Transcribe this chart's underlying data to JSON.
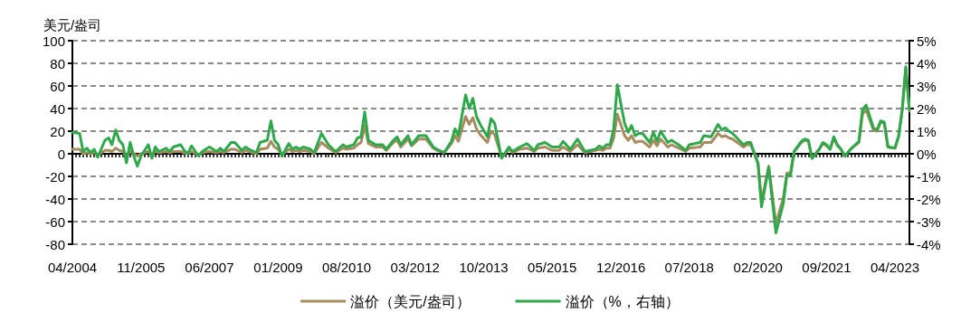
{
  "chart_data": {
    "type": "line",
    "ylabel": "美元/盎司",
    "x": [
      "2004-04",
      "2004-06",
      "2004-07",
      "2004-08",
      "2004-09",
      "2004-10",
      "2004-11",
      "2005-01",
      "2005-02",
      "2005-03",
      "2005-04",
      "2005-05",
      "2005-06",
      "2005-07",
      "2005-08",
      "2005-09",
      "2005-10",
      "2005-11",
      "2006-01",
      "2006-02",
      "2006-03",
      "2006-04",
      "2006-06",
      "2006-07",
      "2006-08",
      "2006-10",
      "2006-11",
      "2006-12",
      "2007-01",
      "2007-03",
      "2007-04",
      "2007-06",
      "2007-08",
      "2007-09",
      "2007-10",
      "2007-12",
      "2008-01",
      "2008-03",
      "2008-04",
      "2008-05",
      "2008-07",
      "2008-08",
      "2008-10",
      "2008-11",
      "2008-12",
      "2009-01",
      "2009-02",
      "2009-04",
      "2009-05",
      "2009-06",
      "2009-07",
      "2009-08",
      "2009-10",
      "2009-11",
      "2010-01",
      "2010-03",
      "2010-05",
      "2010-07",
      "2010-08",
      "2010-10",
      "2010-11",
      "2010-12",
      "2011-01",
      "2011-02",
      "2011-04",
      "2011-06",
      "2011-07",
      "2011-09",
      "2011-10",
      "2011-11",
      "2012-01",
      "2012-02",
      "2012-04",
      "2012-06",
      "2012-08",
      "2012-09",
      "2012-11",
      "2013-01",
      "2013-02",
      "2013-03",
      "2013-05",
      "2013-06",
      "2013-07",
      "2013-08",
      "2013-09",
      "2013-11",
      "2013-12",
      "2014-01",
      "2014-03",
      "2014-05",
      "2014-06",
      "2014-08",
      "2014-10",
      "2014-12",
      "2015-01",
      "2015-03",
      "2015-05",
      "2015-07",
      "2015-08",
      "2015-10",
      "2015-12",
      "2016-02",
      "2016-05",
      "2016-06",
      "2016-07",
      "2016-08",
      "2016-09",
      "2016-10",
      "2016-11",
      "2017-01",
      "2017-02",
      "2017-03",
      "2017-04",
      "2017-05",
      "2017-06",
      "2017-08",
      "2017-09",
      "2017-10",
      "2017-11",
      "2018-01",
      "2018-02",
      "2018-04",
      "2018-06",
      "2018-07",
      "2018-10",
      "2018-11",
      "2019-01",
      "2019-03",
      "2019-04",
      "2019-05",
      "2019-06",
      "2019-07",
      "2019-10",
      "2019-11",
      "2019-12",
      "2020-02",
      "2020-03",
      "2020-05",
      "2020-07",
      "2020-09",
      "2020-10",
      "2020-11",
      "2020-12",
      "2021-02",
      "2021-03",
      "2021-04",
      "2021-05",
      "2021-07",
      "2021-08",
      "2021-09",
      "2021-10",
      "2021-11",
      "2021-12",
      "2022-01",
      "2022-02",
      "2022-04",
      "2022-06",
      "2022-07",
      "2022-08",
      "2022-10",
      "2022-11",
      "2022-12",
      "2023-01",
      "2023-02",
      "2023-04",
      "2023-05",
      "2023-06",
      "2023-07",
      "2023-08"
    ],
    "series": [
      {
        "name": "溢价（美元/盎司）",
        "color": "#a68c5e",
        "values": [
          4,
          4,
          0,
          1,
          0,
          1,
          -1,
          3,
          3,
          2,
          5,
          3,
          2,
          -2,
          2,
          0,
          -2,
          0,
          2,
          -1,
          2,
          1,
          2,
          1,
          2,
          2,
          1,
          0,
          2,
          -1,
          1,
          2,
          1,
          2,
          1,
          4,
          4,
          1,
          3,
          2,
          0,
          4,
          5,
          11,
          6,
          4,
          -1,
          4,
          2,
          3,
          2,
          3,
          2,
          0,
          10,
          5,
          1,
          5,
          4,
          5,
          8,
          10,
          25,
          9,
          6,
          6,
          3,
          10,
          12,
          6,
          13,
          7,
          13,
          13,
          5,
          3,
          1,
          9,
          16,
          11,
          33,
          26,
          32,
          22,
          17,
          10,
          20,
          17,
          -3,
          4,
          1,
          4,
          5,
          2,
          5,
          6,
          3,
          3,
          6,
          2,
          8,
          1,
          3,
          4,
          3,
          5,
          5,
          14,
          35,
          16,
          12,
          16,
          10,
          11,
          11,
          6,
          12,
          7,
          13,
          6,
          8,
          5,
          2,
          5,
          6,
          10,
          10,
          18,
          15,
          16,
          14,
          13,
          6,
          8,
          8,
          -8,
          -42,
          -11,
          -62,
          -39,
          -17,
          -17,
          2,
          10,
          12,
          11,
          -4,
          4,
          9,
          7,
          4,
          14,
          7,
          4,
          -2,
          5,
          10,
          35,
          39,
          21,
          20,
          28,
          27,
          6,
          5,
          15,
          38,
          75,
          38
        ]
      },
      {
        "name": "溢价（%，右轴）",
        "color": "#2ea84a",
        "axis": "y2",
        "values": [
          0.95,
          0.9,
          0.1,
          0.25,
          0.05,
          0.2,
          -0.15,
          0.6,
          0.7,
          0.4,
          1.05,
          0.6,
          0.4,
          -0.4,
          0.5,
          -0.1,
          -0.55,
          -0.1,
          0.4,
          -0.2,
          0.3,
          0.1,
          0.25,
          0.1,
          0.3,
          0.4,
          0.15,
          0,
          0.35,
          -0.1,
          0.1,
          0.3,
          0.1,
          0.25,
          0.1,
          0.5,
          0.5,
          0.15,
          0.3,
          0.2,
          0.05,
          0.5,
          0.6,
          1.45,
          0.6,
          0.4,
          -0.1,
          0.45,
          0.2,
          0.3,
          0.2,
          0.3,
          0.2,
          0.05,
          0.9,
          0.4,
          0.1,
          0.4,
          0.3,
          0.4,
          0.7,
          0.75,
          1.85,
          0.6,
          0.4,
          0.4,
          0.2,
          0.6,
          0.75,
          0.4,
          0.8,
          0.4,
          0.8,
          0.8,
          0.3,
          0.2,
          0.05,
          0.55,
          1.1,
          0.8,
          2.6,
          2.0,
          2.45,
          1.65,
          1.3,
          0.75,
          1.55,
          1.35,
          -0.2,
          0.3,
          0.1,
          0.3,
          0.45,
          0.15,
          0.4,
          0.5,
          0.3,
          0.3,
          0.55,
          0.2,
          0.65,
          0.1,
          0.2,
          0.35,
          0.25,
          0.4,
          0.4,
          1.1,
          3.05,
          1.35,
          0.95,
          1.25,
          0.8,
          0.9,
          0.9,
          0.5,
          0.95,
          0.55,
          1.0,
          0.5,
          0.6,
          0.4,
          0.15,
          0.4,
          0.5,
          0.8,
          0.75,
          1.3,
          1.05,
          1.15,
          1.0,
          0.9,
          0.4,
          0.5,
          0.5,
          -0.45,
          -2.35,
          -0.6,
          -3.5,
          -2.2,
          -0.95,
          -0.95,
          0.1,
          0.55,
          0.65,
          0.6,
          -0.2,
          0.2,
          0.5,
          0.4,
          0.2,
          0.75,
          0.4,
          0.2,
          -0.1,
          0.25,
          0.55,
          1.95,
          2.15,
          1.15,
          1.05,
          1.45,
          1.4,
          0.3,
          0.25,
          0.75,
          1.95,
          3.85,
          1.95
        ]
      }
    ],
    "xlim": [
      "2004-04",
      "2023-08"
    ],
    "xticks": [
      {
        "value": "2004-04",
        "label": "04/2004"
      },
      {
        "value": "2005-11",
        "label": "11/2005"
      },
      {
        "value": "2007-06",
        "label": "06/2007"
      },
      {
        "value": "2009-01",
        "label": "01/2009"
      },
      {
        "value": "2010-08",
        "label": "08/2010"
      },
      {
        "value": "2012-03",
        "label": "03/2012"
      },
      {
        "value": "2013-10",
        "label": "10/2013"
      },
      {
        "value": "2015-05",
        "label": "05/2015"
      },
      {
        "value": "2016-12",
        "label": "12/2016"
      },
      {
        "value": "2018-07",
        "label": "07/2018"
      },
      {
        "value": "2020-02",
        "label": "02/2020"
      },
      {
        "value": "2021-09",
        "label": "09/2021"
      },
      {
        "value": "2023-04",
        "label": "04/2023"
      }
    ],
    "ylim": [
      -80,
      100
    ],
    "yticks": [
      -80,
      -60,
      -40,
      -20,
      0,
      20,
      40,
      60,
      80,
      100
    ],
    "y2lim": [
      -4,
      5
    ],
    "y2ticks": [
      {
        "value": -4,
        "label": "-4%"
      },
      {
        "value": -3,
        "label": "-3%"
      },
      {
        "value": -2,
        "label": "-2%"
      },
      {
        "value": -1,
        "label": "-1%"
      },
      {
        "value": 0,
        "label": "0%"
      },
      {
        "value": 1,
        "label": "1%"
      },
      {
        "value": 2,
        "label": "2%"
      },
      {
        "value": 3,
        "label": "3%"
      },
      {
        "value": 4,
        "label": "4%"
      },
      {
        "value": 5,
        "label": "5%"
      }
    ],
    "grid": "y",
    "legend": "bottom",
    "marker": "none",
    "line_style": "solid"
  }
}
